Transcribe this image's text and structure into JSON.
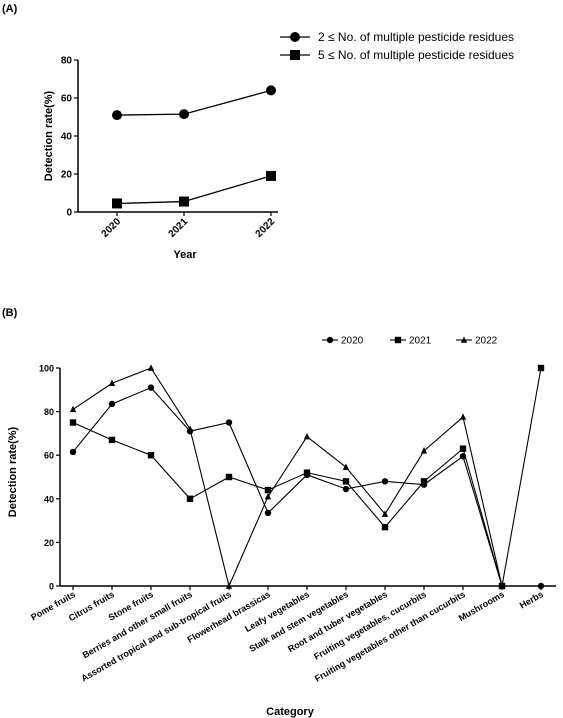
{
  "chart_data": [
    {
      "type": "line",
      "panel_label": "(A)",
      "x": [
        "2020",
        "2021",
        "2022"
      ],
      "xlabel": "Year",
      "ylabel": "Detection rate(%)",
      "ylim": [
        0,
        80
      ],
      "yticks": [
        "0",
        "20",
        "40",
        "60",
        "80"
      ],
      "legend_position": "top-right",
      "series": [
        {
          "name": "2 ≤  No. of multiple pesticide residues",
          "marker": "circle",
          "values": [
            51,
            51.5,
            64
          ]
        },
        {
          "name": "5 ≤  No. of multiple pesticide residues",
          "marker": "square",
          "values": [
            4.5,
            5.5,
            19
          ]
        }
      ]
    },
    {
      "type": "line",
      "panel_label": "(B)",
      "categories": [
        "Pome fruits",
        "Citrus fruits",
        "Stone fruits",
        "Berries and other small fruits",
        "Assorted tropical and sub-tropical fruits",
        "Flowerhead brassicas",
        "Leafy vegetables",
        "Stalk and stem vegetables",
        "Root and tuber vegetables",
        "Fruiting vegetables, cucurbits",
        "Fruiting vegetables other than cucurbits",
        "Mushrooms",
        "Herbs"
      ],
      "xlabel": "Category",
      "ylabel": "Detection rate(%)",
      "ylim": [
        0,
        100
      ],
      "yticks": [
        "0",
        "20",
        "40",
        "60",
        "80",
        "100"
      ],
      "legend_position": "top-right",
      "series": [
        {
          "name": "2020",
          "marker": "circle",
          "values": [
            61.5,
            83.5,
            91,
            71,
            75,
            33.5,
            51,
            44.5,
            48,
            46.5,
            59.5,
            0,
            0
          ]
        },
        {
          "name": "2021",
          "marker": "square",
          "values": [
            75,
            67,
            60,
            40,
            50,
            44,
            52,
            48,
            null,
            48,
            63,
            0,
            100
          ]
        },
        {
          "name": "2022",
          "marker": "triangle",
          "values": [
            81,
            93,
            100,
            72,
            0,
            41,
            68.5,
            54.5,
            33,
            62,
            77.5,
            0,
            null
          ]
        }
      ],
      "series_extra_points": [
        {
          "series": "2021",
          "category_index": 8,
          "value": 27
        }
      ]
    }
  ]
}
